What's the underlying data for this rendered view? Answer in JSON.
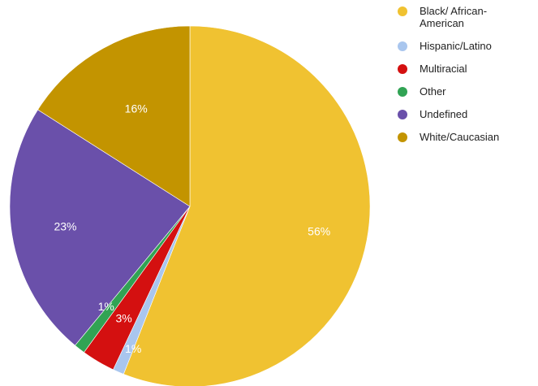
{
  "chart_data": {
    "type": "pie",
    "title": "",
    "slices": [
      {
        "name": "Black/ African-American",
        "value": 56,
        "label": "56%",
        "color": "#f0c231"
      },
      {
        "name": "Hispanic/Latino",
        "value": 1,
        "label": "1%",
        "color": "#a9c6ee"
      },
      {
        "name": "Multiracial",
        "value": 3,
        "label": "3%",
        "color": "#d41010"
      },
      {
        "name": "Other",
        "value": 1,
        "label": "1%",
        "color": "#31a354"
      },
      {
        "name": "Undefined",
        "value": 23,
        "label": "23%",
        "color": "#6a50aa"
      },
      {
        "name": "White/Caucasian",
        "value": 16,
        "label": "16%",
        "color": "#c39400"
      }
    ],
    "legend_position": "right"
  }
}
